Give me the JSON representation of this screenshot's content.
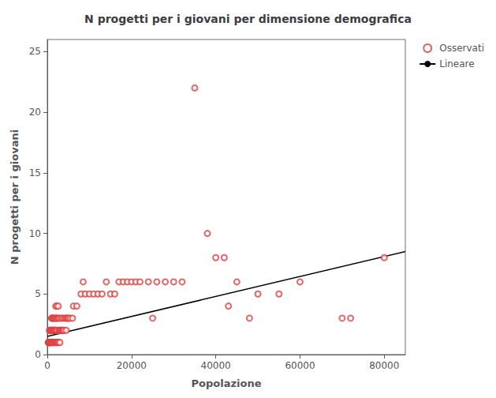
{
  "chart_data": {
    "type": "scatter",
    "title": "N progetti per i giovani per dimensione demografica",
    "xlabel": "Popolazione",
    "ylabel": "N progetti per i giovani",
    "xlim": [
      0,
      85000
    ],
    "ylim": [
      0,
      26
    ],
    "xticks": [
      0,
      20000,
      40000,
      60000,
      80000
    ],
    "yticks": [
      0,
      5,
      10,
      15,
      20,
      25
    ],
    "grid": false,
    "legend": "upper right",
    "series": [
      {
        "name": "Osservati",
        "type": "scatter",
        "color": "#e04040",
        "marker": "open circle",
        "x": [
          200,
          300,
          350,
          400,
          450,
          500,
          500,
          550,
          600,
          600,
          650,
          700,
          700,
          750,
          800,
          800,
          900,
          950,
          1000,
          1000,
          1050,
          1100,
          1100,
          1150,
          1200,
          1200,
          1250,
          1300,
          1300,
          1350,
          1400,
          1400,
          1450,
          1500,
          1550,
          1600,
          1600,
          1650,
          1700,
          1750,
          1800,
          1800,
          1900,
          1900,
          2000,
          2000,
          2000,
          2050,
          2100,
          2100,
          2200,
          2200,
          2200,
          2300,
          2300,
          2400,
          2500,
          2500,
          2600,
          2600,
          2700,
          2700,
          2800,
          2900,
          3000,
          3000,
          3100,
          3200,
          3300,
          3400,
          3500,
          3600,
          3700,
          3800,
          4000,
          4100,
          4300,
          4500,
          4600,
          4700,
          5000,
          5100,
          5500,
          6000,
          6200,
          7000,
          8000,
          8500,
          9000,
          10000,
          11000,
          12000,
          13000,
          14000,
          15000,
          16000,
          17000,
          18000,
          19000,
          20000,
          21000,
          22000,
          24000,
          25000,
          26000,
          28000,
          30000,
          32000,
          35000,
          38000,
          40000,
          42000,
          43000,
          45000,
          48000,
          50000,
          55000,
          60000,
          70000,
          72000,
          80000
        ],
        "values": [
          1,
          1,
          1,
          1,
          1,
          1,
          2,
          1,
          1,
          2,
          1,
          1,
          2,
          1,
          1,
          2,
          1,
          2,
          1,
          3,
          2,
          1,
          3,
          2,
          1,
          3,
          2,
          1,
          3,
          2,
          1,
          3,
          2,
          1,
          2,
          1,
          3,
          2,
          2,
          2,
          1,
          3,
          1,
          3,
          1,
          2,
          4,
          2,
          1,
          3,
          1,
          2,
          4,
          1,
          3,
          2,
          1,
          3,
          1,
          4,
          1,
          3,
          2,
          2,
          1,
          3,
          2,
          2,
          2,
          3,
          2,
          2,
          3,
          2,
          2,
          3,
          3,
          2,
          3,
          3,
          3,
          3,
          3,
          3,
          4,
          4,
          5,
          6,
          5,
          5,
          5,
          5,
          5,
          6,
          5,
          5,
          6,
          6,
          6,
          6,
          6,
          6,
          6,
          3,
          6,
          6,
          6,
          6,
          22,
          10,
          8,
          8,
          4,
          6,
          3,
          5,
          5,
          6,
          3,
          3,
          8
        ]
      },
      {
        "name": "Lineare",
        "type": "line",
        "color": "black",
        "line_style": "solid",
        "x": [
          0,
          85000
        ],
        "values": [
          1.5,
          8.5
        ]
      }
    ]
  }
}
